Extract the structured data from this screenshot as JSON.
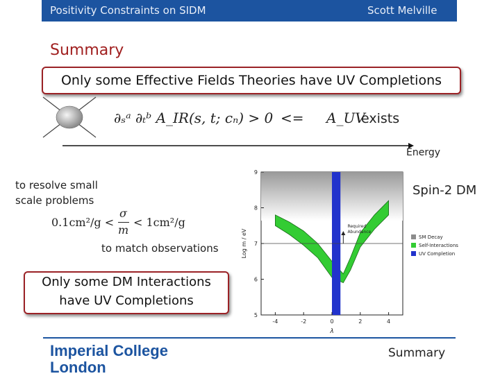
{
  "header": {
    "left": "Positivity Constraints on SIDM",
    "right": "Scott Melville",
    "bar_color": "#1c54a0"
  },
  "slide": {
    "title": "Summary",
    "eft_box": "Only some Effective Fields Theories have UV Completions",
    "positivity_formula": "∂ₛᵃ ∂ₜᵇ A_IR(s, t; cₙ) > 0",
    "implies": "<=",
    "uv_formula": "A_UV",
    "exists": "exists",
    "energy_label": "Energy",
    "resolve_text_1": "to resolve small",
    "resolve_text_2": "scale problems",
    "cross_section": "0.1cm²/g < σ/m < 1cm²/g",
    "cs_left": "0.1cm²/g <",
    "cs_num": "σ",
    "cs_den": "m",
    "cs_right": "< 1cm²/g",
    "match_text": "to match observations",
    "dm_box_1": "Only some DM Interactions",
    "dm_box_2": "have UV Completions",
    "spin2_label": "Spin-2 DM",
    "footer_section": "Summary",
    "accent_color": "#9b2226"
  },
  "logo": {
    "line1": "Imperial College",
    "line2": "London"
  },
  "chart_data": {
    "type": "area",
    "xlabel": "λ",
    "ylabel": "Log m / eV",
    "xlim": [
      -5,
      5
    ],
    "ylim": [
      5,
      9
    ],
    "xticks": [
      "-4",
      "-2",
      "0",
      "2",
      "4"
    ],
    "yticks": [
      "5",
      "6",
      "7",
      "8",
      "9"
    ],
    "required_abundance_label": "Required Abundance",
    "required_abundance_y": 7.0,
    "legend": [
      "SM Decay",
      "Self-Interactions",
      "UV Completion"
    ],
    "legend_colors": [
      "#8c8c8c",
      "#33cc33",
      "#2233cc"
    ],
    "uv_band": [
      0,
      0.6
    ],
    "self_interaction_band": {
      "x": [
        -4.0,
        -3.0,
        -2.0,
        -1.0,
        0.0,
        0.8,
        1.3,
        2.0,
        3.0,
        4.0
      ],
      "upper": [
        7.8,
        7.6,
        7.35,
        7.0,
        6.5,
        6.15,
        6.6,
        7.3,
        7.8,
        8.2
      ],
      "lower": [
        7.5,
        7.25,
        6.95,
        6.6,
        6.05,
        5.9,
        6.25,
        6.9,
        7.4,
        7.8
      ]
    }
  }
}
